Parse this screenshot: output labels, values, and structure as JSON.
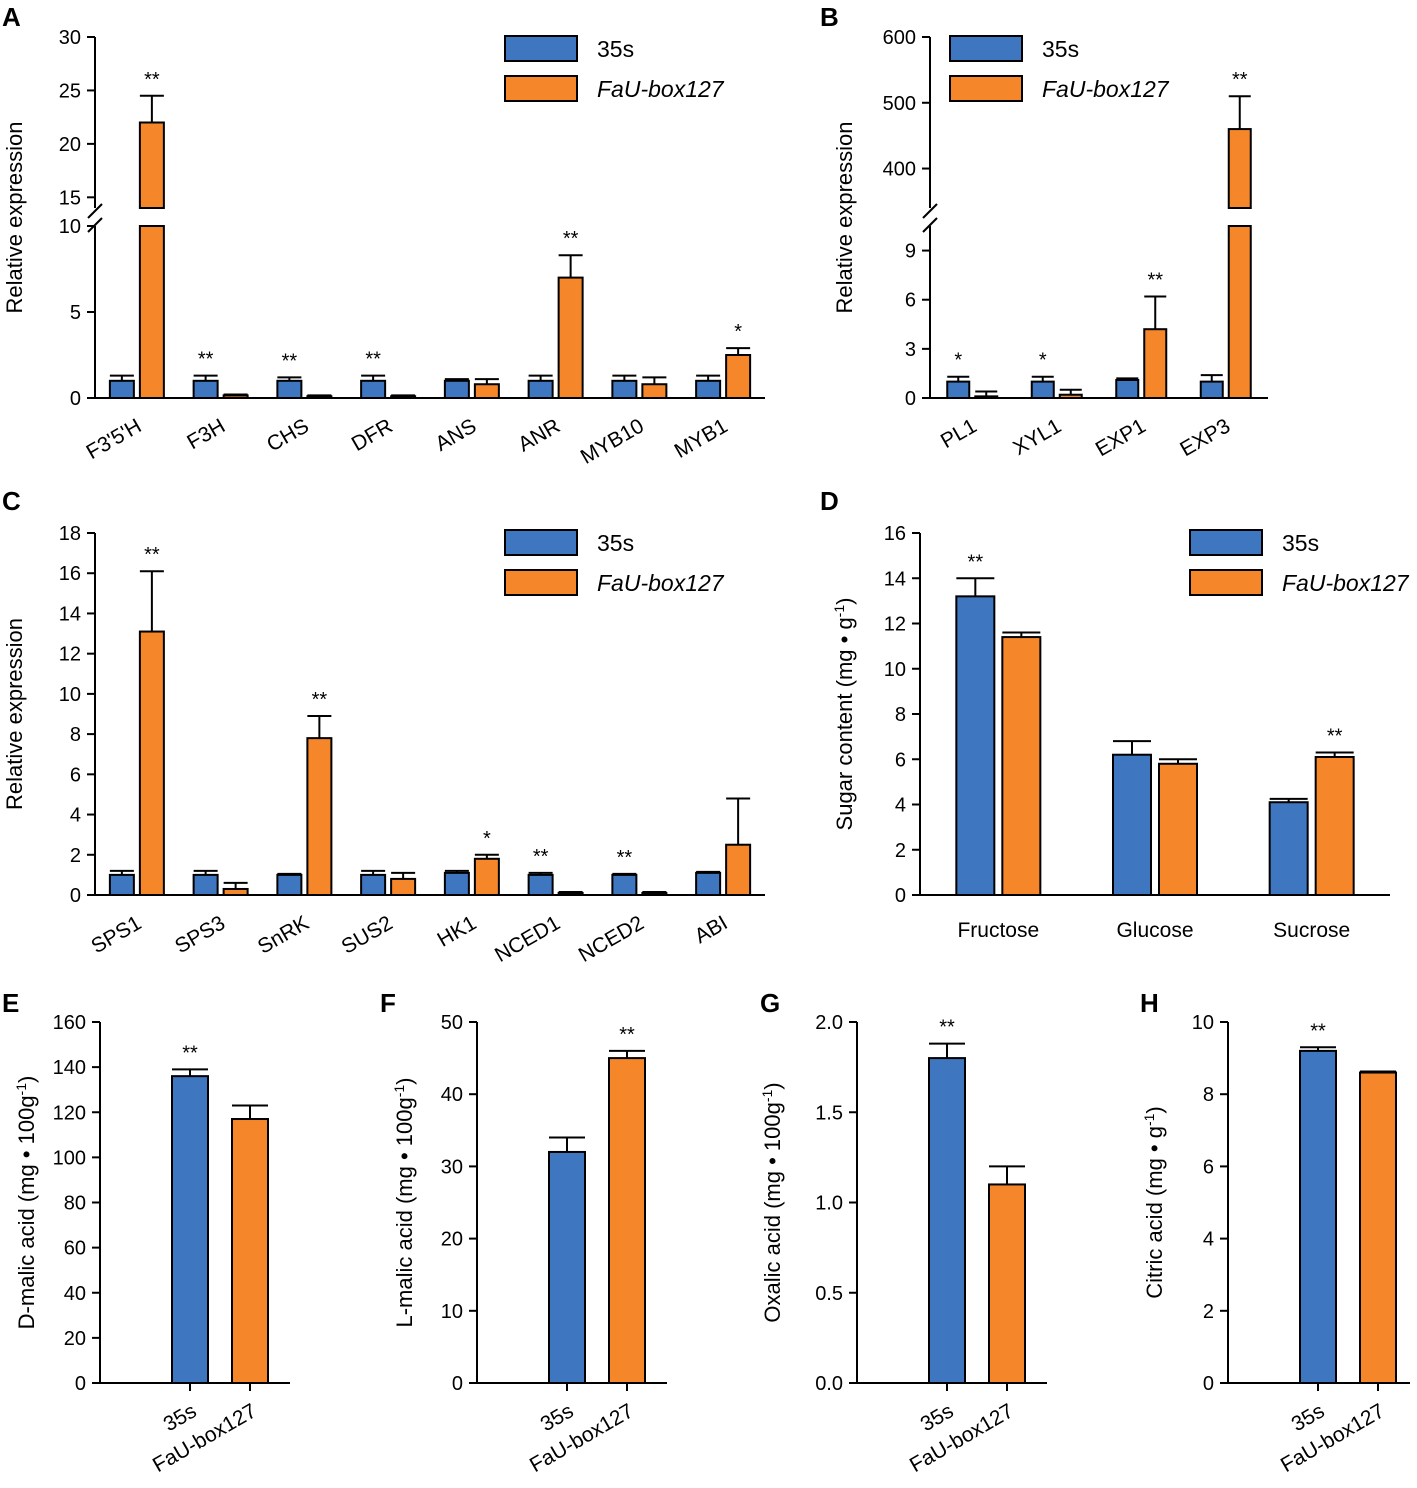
{
  "colors": {
    "series1": "#3f76c0",
    "series2": "#f5862a",
    "axis": "#000000"
  },
  "chart_data": [
    {
      "panel": "A",
      "type": "bar",
      "ylabel": "Relative expression",
      "broken_axis": true,
      "lower_range": [
        0,
        10
      ],
      "upper_range": [
        14,
        30
      ],
      "lower_ticks": [
        0,
        5,
        10
      ],
      "upper_ticks": [
        15,
        20,
        25,
        30
      ],
      "categories": [
        "F3'5'H",
        "F3H",
        "CHS",
        "DFR",
        "ANS",
        "ANR",
        "MYB10",
        "MYB1"
      ],
      "series": [
        {
          "name": "35s",
          "values": [
            1,
            1,
            1,
            1,
            1,
            1,
            1,
            1
          ],
          "errors": [
            0.3,
            0.3,
            0.2,
            0.3,
            0.1,
            0.3,
            0.3,
            0.3
          ]
        },
        {
          "name": "FaU-box127",
          "italic": true,
          "values": [
            22,
            0.15,
            0.1,
            0.1,
            0.8,
            7,
            0.8,
            2.5
          ],
          "errors": [
            2.5,
            0.05,
            0.05,
            0.05,
            0.3,
            1.3,
            0.4,
            0.4
          ]
        }
      ],
      "significance": [
        "**",
        "**",
        "**",
        "**",
        "",
        "**",
        "",
        "*"
      ]
    },
    {
      "panel": "B",
      "type": "bar",
      "ylabel": "Relative expression",
      "broken_axis": true,
      "lower_range": [
        0,
        10.5
      ],
      "upper_range": [
        340,
        600
      ],
      "lower_ticks": [
        0,
        3,
        6,
        9
      ],
      "upper_ticks": [
        400,
        500,
        600
      ],
      "categories": [
        "PL1",
        "XYL1",
        "EXP1",
        "EXP3"
      ],
      "series": [
        {
          "name": "35s",
          "values": [
            1,
            1,
            1.1,
            1
          ],
          "errors": [
            0.3,
            0.3,
            0.1,
            0.4
          ]
        },
        {
          "name": "FaU-box127",
          "italic": true,
          "values": [
            0.1,
            0.2,
            4.2,
            460
          ],
          "errors": [
            0.3,
            0.3,
            2.0,
            50
          ]
        }
      ],
      "significance": [
        "*",
        "*",
        "**",
        "**"
      ]
    },
    {
      "panel": "C",
      "type": "bar",
      "ylabel": "Relative expression",
      "ylim": [
        0,
        18
      ],
      "ticks": [
        0,
        2,
        4,
        6,
        8,
        10,
        12,
        14,
        16,
        18
      ],
      "categories": [
        "SPS1",
        "SPS3",
        "SnRK",
        "SUS2",
        "HK1",
        "NCED1",
        "NCED2",
        "ABI"
      ],
      "series": [
        {
          "name": "35s",
          "values": [
            1,
            1,
            1,
            1,
            1.1,
            1,
            1,
            1.1
          ],
          "errors": [
            0.2,
            0.2,
            0.05,
            0.2,
            0.1,
            0.1,
            0.05,
            0.05
          ]
        },
        {
          "name": "FaU-box127",
          "italic": true,
          "values": [
            13.1,
            0.3,
            7.8,
            0.8,
            1.8,
            0.1,
            0.1,
            2.5
          ],
          "errors": [
            3.0,
            0.3,
            1.1,
            0.3,
            0.2,
            0.05,
            0.05,
            2.3
          ]
        }
      ],
      "significance": [
        "**",
        "",
        "**",
        "",
        "*",
        "**",
        "**",
        ""
      ]
    },
    {
      "panel": "D",
      "type": "bar",
      "ylabel": "Sugar content (mg • g",
      "ylabel_sup": "-1",
      "ylabel_end": ")",
      "ylim": [
        0,
        16
      ],
      "ticks": [
        0,
        2,
        4,
        6,
        8,
        10,
        12,
        14,
        16
      ],
      "categories": [
        "Fructose",
        "Glucose",
        "Sucrose"
      ],
      "series": [
        {
          "name": "35s",
          "values": [
            13.2,
            6.2,
            4.1
          ],
          "errors": [
            0.8,
            0.6,
            0.15
          ]
        },
        {
          "name": "FaU-box127",
          "italic": true,
          "values": [
            11.4,
            5.8,
            6.1
          ],
          "errors": [
            0.2,
            0.2,
            0.2
          ]
        }
      ],
      "significance": [
        "**",
        "",
        "**"
      ]
    },
    {
      "panel": "E",
      "type": "bar",
      "ylabel": "D-malic acid (mg • 100g",
      "ylabel_sup": "-1",
      "ylabel_end": ")",
      "ylim": [
        0,
        160
      ],
      "ticks": [
        0,
        20,
        40,
        60,
        80,
        100,
        120,
        140,
        160
      ],
      "categories": [
        "35s",
        "FaU-box127"
      ],
      "values": [
        136,
        117
      ],
      "errors": [
        3,
        6
      ],
      "significance": [
        "**",
        ""
      ]
    },
    {
      "panel": "F",
      "type": "bar",
      "ylabel": "L-malic acid (mg • 100g",
      "ylabel_sup": "-1",
      "ylabel_end": ")",
      "ylim": [
        0,
        50
      ],
      "ticks": [
        0,
        10,
        20,
        30,
        40,
        50
      ],
      "categories": [
        "35s",
        "FaU-box127"
      ],
      "values": [
        32,
        45
      ],
      "errors": [
        2,
        1
      ],
      "significance": [
        "",
        "**"
      ]
    },
    {
      "panel": "G",
      "type": "bar",
      "ylabel": "Oxalic acid (mg • 100g",
      "ylabel_sup": "-1",
      "ylabel_end": ")",
      "ylim": [
        0,
        2
      ],
      "ticks": [
        "0.0",
        "0.5",
        "1.0",
        "1.5",
        "2.0"
      ],
      "categories": [
        "35s",
        "FaU-box127"
      ],
      "values": [
        1.8,
        1.1
      ],
      "errors": [
        0.08,
        0.1
      ],
      "significance": [
        "**",
        ""
      ]
    },
    {
      "panel": "H",
      "type": "bar",
      "ylabel": "Citric acid (mg • g",
      "ylabel_sup": "-1",
      "ylabel_end": ")",
      "ylim": [
        0,
        10
      ],
      "ticks": [
        0,
        2,
        4,
        6,
        8,
        10
      ],
      "categories": [
        "35s",
        "FaU-box127"
      ],
      "values": [
        9.2,
        8.6
      ],
      "errors": [
        0.1,
        0.03
      ],
      "significance": [
        "**",
        ""
      ]
    }
  ]
}
